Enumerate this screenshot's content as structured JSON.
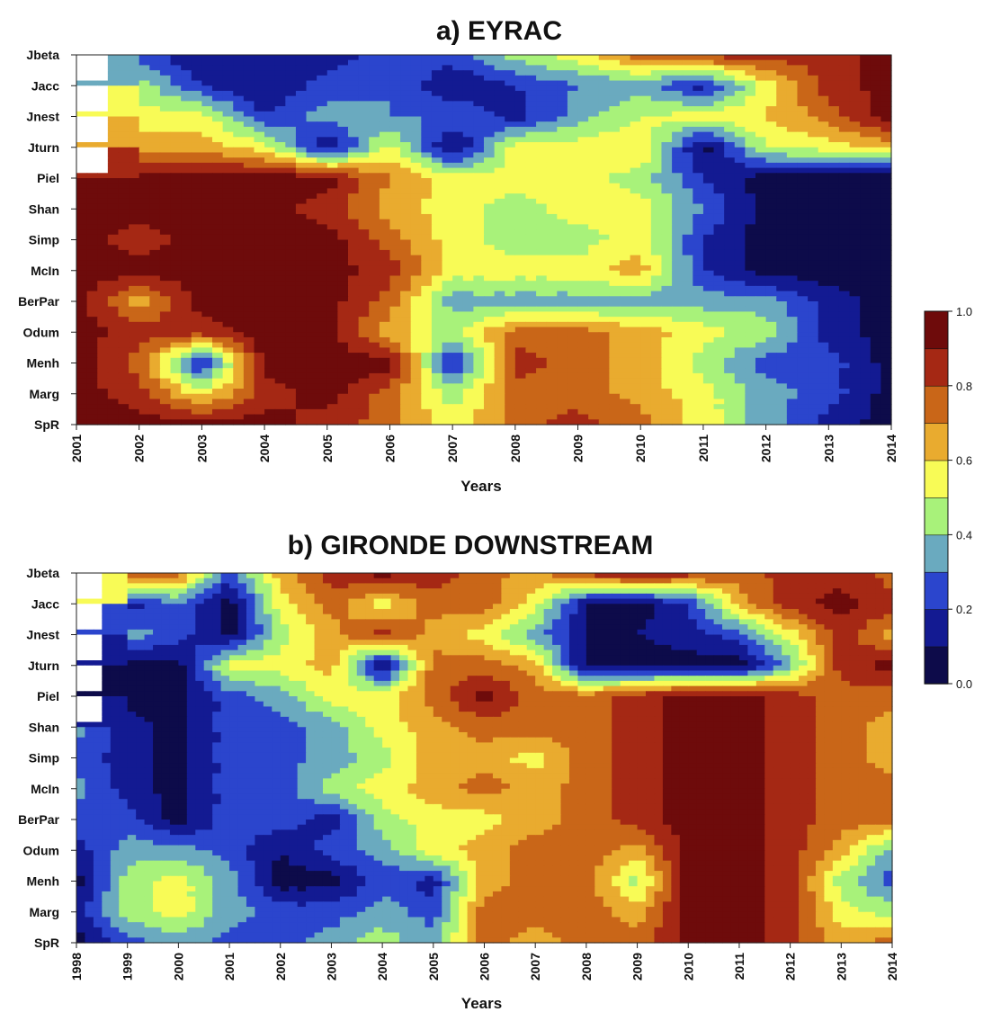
{
  "chart_data": [
    {
      "type": "heatmap",
      "title": "a) EYRAC",
      "xlabel": "Years",
      "ylabel": "",
      "x": [
        2001,
        2002,
        2003,
        2004,
        2005,
        2006,
        2007,
        2008,
        2009,
        2010,
        2011,
        2012,
        2013,
        2014
      ],
      "y": [
        "Jbeta",
        "Jacc",
        "Jnest",
        "Jturn",
        "Piel",
        "Shan",
        "Simp",
        "McIn",
        "BerPar",
        "Odum",
        "Menh",
        "Marg",
        "SpR"
      ],
      "xlim": [
        2001,
        2014
      ],
      "values": [
        [
          null,
          0.25,
          0.1,
          0.1,
          0.15,
          0.25,
          0.25,
          0.45,
          0.55,
          0.75,
          0.85,
          0.85,
          0.85,
          0.95
        ],
        [
          null,
          0.45,
          0.2,
          0.1,
          0.25,
          0.3,
          0.1,
          0.2,
          0.3,
          0.35,
          0.15,
          0.55,
          0.85,
          0.95
        ],
        [
          null,
          0.55,
          0.55,
          0.2,
          0.35,
          0.3,
          0.3,
          0.15,
          0.35,
          0.5,
          0.55,
          0.6,
          0.75,
          0.95
        ],
        [
          null,
          0.65,
          0.65,
          0.55,
          0.1,
          0.55,
          0.05,
          0.55,
          0.55,
          0.6,
          0.05,
          0.5,
          0.55,
          0.65
        ],
        [
          0.95,
          0.95,
          0.95,
          0.95,
          0.95,
          0.7,
          0.55,
          0.55,
          0.55,
          0.45,
          0.2,
          0.05,
          0.05,
          0.05
        ],
        [
          0.95,
          0.95,
          0.95,
          0.95,
          0.85,
          0.65,
          0.55,
          0.45,
          0.55,
          0.55,
          0.3,
          0.05,
          0.05,
          0.05
        ],
        [
          0.95,
          0.85,
          0.95,
          0.95,
          0.95,
          0.75,
          0.55,
          0.45,
          0.45,
          0.55,
          0.2,
          0.05,
          0.05,
          0.05
        ],
        [
          0.95,
          0.95,
          0.95,
          0.95,
          0.95,
          0.85,
          0.55,
          0.55,
          0.55,
          0.65,
          0.2,
          0.05,
          0.05,
          0.05
        ],
        [
          0.95,
          0.65,
          0.95,
          0.95,
          0.95,
          0.75,
          0.35,
          0.35,
          0.35,
          0.35,
          0.35,
          0.35,
          0.15,
          0.05
        ],
        [
          0.95,
          0.85,
          0.85,
          0.95,
          0.95,
          0.65,
          0.45,
          0.75,
          0.75,
          0.65,
          0.55,
          0.45,
          0.15,
          0.05
        ],
        [
          0.95,
          0.75,
          0.15,
          0.95,
          0.95,
          0.95,
          0.15,
          0.85,
          0.75,
          0.65,
          0.45,
          0.25,
          0.25,
          0.05
        ],
        [
          0.95,
          0.85,
          0.55,
          0.85,
          0.95,
          0.75,
          0.45,
          0.75,
          0.75,
          0.65,
          0.55,
          0.35,
          0.25,
          0.05
        ],
        [
          0.95,
          0.95,
          0.95,
          0.95,
          0.85,
          0.75,
          0.55,
          0.75,
          0.85,
          0.75,
          0.55,
          0.35,
          0.15,
          0.05
        ]
      ]
    },
    {
      "type": "heatmap",
      "title": "b) GIRONDE DOWNSTREAM",
      "xlabel": "Years",
      "ylabel": "",
      "x": [
        1998,
        1999,
        2000,
        2001,
        2002,
        2003,
        2004,
        2005,
        2006,
        2007,
        2008,
        2009,
        2010,
        2011,
        2012,
        2013,
        2014
      ],
      "y": [
        "Jbeta",
        "Jacc",
        "Jnest",
        "Jturn",
        "Piel",
        "Shan",
        "Simp",
        "McIn",
        "BerPar",
        "Odum",
        "Menh",
        "Marg",
        "SpR"
      ],
      "xlim": [
        1998,
        2014
      ],
      "values": [
        [
          null,
          0.85,
          0.75,
          0.25,
          0.65,
          0.85,
          0.95,
          0.85,
          0.75,
          0.65,
          0.85,
          0.95,
          0.85,
          0.75,
          0.85,
          0.85,
          0.75
        ],
        [
          null,
          0.15,
          0.3,
          0.05,
          0.55,
          0.75,
          0.55,
          0.75,
          0.75,
          0.55,
          0.1,
          0.05,
          0.2,
          0.65,
          0.85,
          0.95,
          0.85
        ],
        [
          null,
          0.35,
          0.25,
          0.05,
          0.45,
          0.65,
          0.85,
          0.65,
          0.55,
          0.35,
          0.1,
          0.1,
          0.15,
          0.25,
          0.55,
          0.85,
          0.65
        ],
        [
          null,
          0.05,
          0.05,
          0.55,
          0.55,
          0.65,
          0.05,
          0.75,
          0.75,
          0.65,
          0.05,
          0.05,
          0.05,
          0.05,
          0.35,
          0.85,
          0.95
        ],
        [
          null,
          0.05,
          0.05,
          0.25,
          0.35,
          0.55,
          0.55,
          0.75,
          0.95,
          0.75,
          0.75,
          0.85,
          0.95,
          0.95,
          0.85,
          0.75,
          0.75
        ],
        [
          0.35,
          0.15,
          0.05,
          0.25,
          0.25,
          0.35,
          0.55,
          0.65,
          0.75,
          0.75,
          0.75,
          0.85,
          0.95,
          0.95,
          0.85,
          0.75,
          0.65
        ],
        [
          0.25,
          0.15,
          0.05,
          0.25,
          0.25,
          0.35,
          0.45,
          0.65,
          0.65,
          0.55,
          0.75,
          0.85,
          0.95,
          0.95,
          0.85,
          0.75,
          0.65
        ],
        [
          0.35,
          0.15,
          0.05,
          0.25,
          0.25,
          0.45,
          0.55,
          0.65,
          0.75,
          0.65,
          0.75,
          0.85,
          0.95,
          0.95,
          0.85,
          0.75,
          0.75
        ],
        [
          0.25,
          0.25,
          0.05,
          0.25,
          0.25,
          0.15,
          0.45,
          0.55,
          0.55,
          0.65,
          0.75,
          0.85,
          0.95,
          0.95,
          0.85,
          0.75,
          0.75
        ],
        [
          0.15,
          0.35,
          0.35,
          0.25,
          0.1,
          0.25,
          0.35,
          0.55,
          0.65,
          0.75,
          0.75,
          0.65,
          0.95,
          0.95,
          0.85,
          0.65,
          0.35
        ],
        [
          0.05,
          0.45,
          0.55,
          0.35,
          0.05,
          0.05,
          0.25,
          0.15,
          0.65,
          0.75,
          0.75,
          0.45,
          0.95,
          0.95,
          0.85,
          0.45,
          0.25
        ],
        [
          0.15,
          0.45,
          0.55,
          0.35,
          0.25,
          0.25,
          0.35,
          0.25,
          0.75,
          0.75,
          0.75,
          0.65,
          0.95,
          0.95,
          0.85,
          0.55,
          0.45
        ],
        [
          0.05,
          0.25,
          0.35,
          0.25,
          0.25,
          0.35,
          0.45,
          0.35,
          0.75,
          0.65,
          0.75,
          0.75,
          0.95,
          0.95,
          0.85,
          0.65,
          0.75
        ]
      ]
    }
  ],
  "legend": {
    "ticks": [
      "0.0",
      "0.2",
      "0.4",
      "0.6",
      "0.8",
      "1.0"
    ],
    "levels": [
      0.0,
      0.1,
      0.2,
      0.3,
      0.4,
      0.5,
      0.6,
      0.7,
      0.8,
      0.9,
      1.0
    ],
    "colors": [
      "#0d0b4a",
      "#131a92",
      "#2b45cd",
      "#6aaabf",
      "#a8f27a",
      "#f8fb56",
      "#e9ab2f",
      "#c96618",
      "#a52814",
      "#6e0b0b"
    ]
  }
}
